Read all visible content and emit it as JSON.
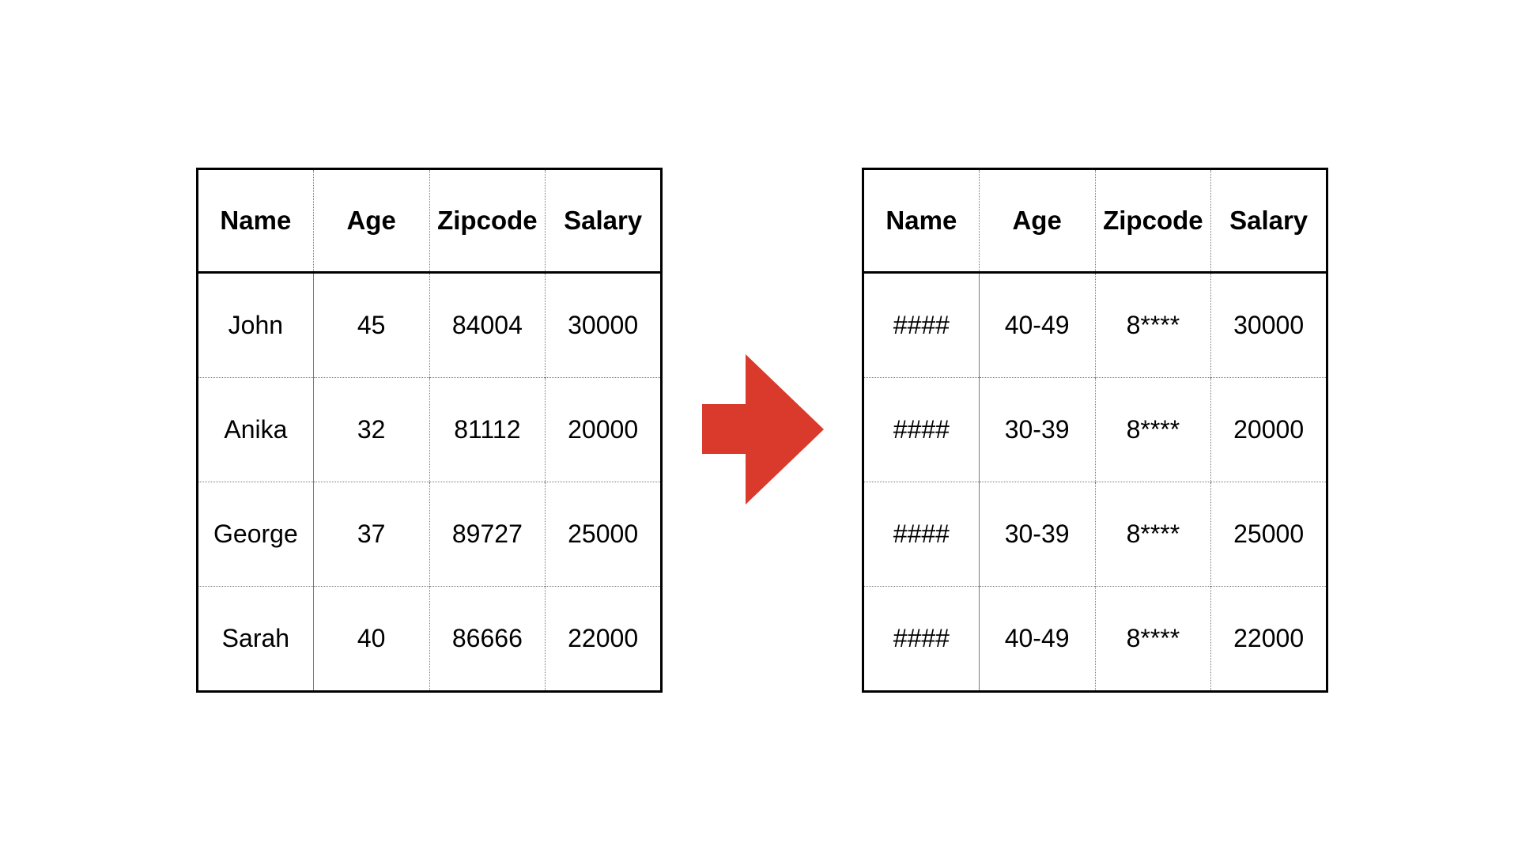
{
  "tables": {
    "original": {
      "headers": [
        "Name",
        "Age",
        "Zipcode",
        "Salary"
      ],
      "rows": [
        [
          "John",
          "45",
          "84004",
          "30000"
        ],
        [
          "Anika",
          "32",
          "81112",
          "20000"
        ],
        [
          "George",
          "37",
          "89727",
          "25000"
        ],
        [
          "Sarah",
          "40",
          "86666",
          "22000"
        ]
      ]
    },
    "anonymized": {
      "headers": [
        "Name",
        "Age",
        "Zipcode",
        "Salary"
      ],
      "rows": [
        [
          "####",
          "40-49",
          "8****",
          "30000"
        ],
        [
          "####",
          "30-39",
          "8****",
          "20000"
        ],
        [
          "####",
          "30-39",
          "8****",
          "25000"
        ],
        [
          "####",
          "40-49",
          "8****",
          "22000"
        ]
      ]
    }
  },
  "arrow": {
    "icon": "right-arrow-icon",
    "color": "#d93a2b"
  }
}
